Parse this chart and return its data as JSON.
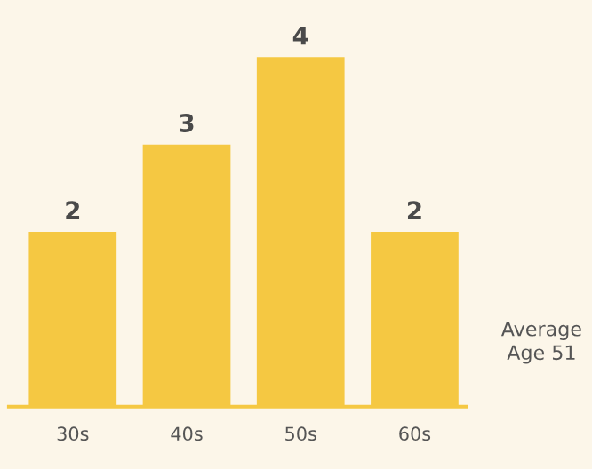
{
  "chart_data": {
    "type": "bar",
    "categories": [
      "30s",
      "40s",
      "50s",
      "60s"
    ],
    "values": [
      2,
      3,
      4,
      2
    ],
    "color": "#f5c842",
    "tick_labels": "x",
    "data_labels": true,
    "grid": false,
    "annotations": [
      "Average\nAge 51"
    ]
  }
}
